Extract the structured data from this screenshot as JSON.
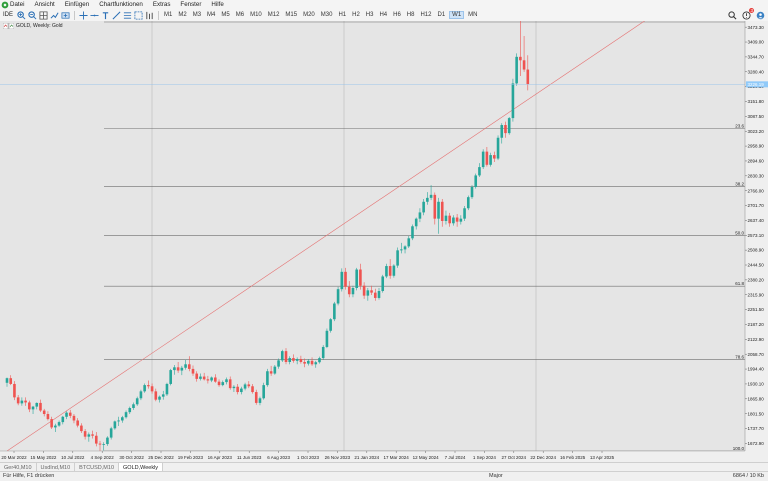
{
  "menu": {
    "items": [
      "Datei",
      "Ansicht",
      "Einfügen",
      "Chartfunktionen",
      "Extras",
      "Fenster",
      "Hilfe"
    ]
  },
  "toolbar": {
    "ide_label": "IDE",
    "timeframes": [
      "M1",
      "M2",
      "M3",
      "M4",
      "M5",
      "M6",
      "M10",
      "M12",
      "M15",
      "M20",
      "M30",
      "H1",
      "H2",
      "H3",
      "H4",
      "H6",
      "H8",
      "H12",
      "D1",
      "W1",
      "MN"
    ],
    "active_timeframe": "W1",
    "notification_count": "3"
  },
  "chart": {
    "title": "GOLD, Weekly:  Gold",
    "current_price_label": "3226.19"
  },
  "chart_data": {
    "type": "candlestick",
    "symbol": "GOLD",
    "timeframe": "Weekly",
    "y_ticks": [
      1672.9,
      1737.7,
      1801.5,
      1865.8,
      1930.1,
      1994.4,
      2058.7,
      2122.9,
      2187.2,
      2251.5,
      2315.9,
      2380.2,
      2444.5,
      2508.9,
      2573.1,
      2637.4,
      2701.7,
      2766.0,
      2830.3,
      2894.6,
      2958.9,
      3023.2,
      3087.5,
      3151.8,
      3216.1,
      3280.4,
      3344.7,
      3409.0,
      3473.3
    ],
    "ylim": [
      1640,
      3500
    ],
    "x_labels": [
      "20 Mar 2022",
      "15 May 2022",
      "10 Jul 2022",
      "4 Sep 2022",
      "30 Oct 2022",
      "25 Dec 2022",
      "19 Feb 2023",
      "16 Apr 2023",
      "11 Jun 2023",
      "6 Aug 2023",
      "1 Oct 2023",
      "26 Nov 2023",
      "21 Jan 2024",
      "17 Mar 2024",
      "12 May 2024",
      "7 Jul 2024",
      "1 Sep 2024",
      "27 Oct 2024",
      "22 Dec 2024",
      "16 Feb 2025",
      "13 Apr 2025"
    ],
    "fibonacci": [
      {
        "label": "23.6",
        "price": 3035
      },
      {
        "label": "38.2",
        "price": 2785
      },
      {
        "label": "50.0",
        "price": 2573
      },
      {
        "label": "61.8",
        "price": 2353
      },
      {
        "label": "78.6",
        "price": 2035
      },
      {
        "label": "100.0",
        "price": 1640
      }
    ],
    "trendline": {
      "from": [
        0,
        1640
      ],
      "to": [
        158,
        3355
      ]
    },
    "candles": [
      [
        1935,
        1958,
        1918,
        1955
      ],
      [
        1955,
        1968,
        1925,
        1930
      ],
      [
        1930,
        1942,
        1860,
        1872
      ],
      [
        1872,
        1882,
        1838,
        1846
      ],
      [
        1846,
        1872,
        1836,
        1858
      ],
      [
        1858,
        1872,
        1835,
        1850
      ],
      [
        1850,
        1858,
        1808,
        1820
      ],
      [
        1820,
        1835,
        1800,
        1832
      ],
      [
        1832,
        1850,
        1820,
        1848
      ],
      [
        1848,
        1862,
        1808,
        1815
      ],
      [
        1815,
        1822,
        1790,
        1800
      ],
      [
        1800,
        1812,
        1772,
        1778
      ],
      [
        1778,
        1788,
        1735,
        1742
      ],
      [
        1742,
        1758,
        1722,
        1750
      ],
      [
        1750,
        1772,
        1745,
        1765
      ],
      [
        1765,
        1792,
        1755,
        1788
      ],
      [
        1788,
        1812,
        1778,
        1806
      ],
      [
        1806,
        1818,
        1782,
        1792
      ],
      [
        1792,
        1800,
        1760,
        1772
      ],
      [
        1772,
        1782,
        1742,
        1750
      ],
      [
        1750,
        1760,
        1718,
        1726
      ],
      [
        1726,
        1735,
        1690,
        1702
      ],
      [
        1702,
        1720,
        1680,
        1712
      ],
      [
        1712,
        1728,
        1694,
        1706
      ],
      [
        1706,
        1722,
        1660,
        1672
      ],
      [
        1672,
        1684,
        1640,
        1668
      ],
      [
        1668,
        1678,
        1642,
        1670
      ],
      [
        1670,
        1704,
        1662,
        1698
      ],
      [
        1698,
        1745,
        1690,
        1738
      ],
      [
        1738,
        1772,
        1732,
        1768
      ],
      [
        1768,
        1788,
        1748,
        1772
      ],
      [
        1772,
        1792,
        1762,
        1786
      ],
      [
        1786,
        1815,
        1780,
        1808
      ],
      [
        1808,
        1832,
        1800,
        1826
      ],
      [
        1826,
        1850,
        1818,
        1842
      ],
      [
        1842,
        1875,
        1835,
        1868
      ],
      [
        1868,
        1905,
        1860,
        1898
      ],
      [
        1898,
        1932,
        1892,
        1925
      ],
      [
        1925,
        1945,
        1910,
        1920
      ],
      [
        1920,
        1932,
        1888,
        1898
      ],
      [
        1898,
        1910,
        1855,
        1862
      ],
      [
        1862,
        1880,
        1850,
        1875
      ],
      [
        1875,
        1900,
        1862,
        1885
      ],
      [
        1885,
        1935,
        1878,
        1930
      ],
      [
        1930,
        1995,
        1924,
        1990
      ],
      [
        1990,
        2012,
        1970,
        2002
      ],
      [
        2002,
        2025,
        1978,
        1988
      ],
      [
        1988,
        2008,
        1968,
        2000
      ],
      [
        2000,
        2035,
        1992,
        2015
      ],
      [
        2015,
        2050,
        1985,
        1995
      ],
      [
        1995,
        2010,
        1965,
        1975
      ],
      [
        1975,
        1985,
        1940,
        1952
      ],
      [
        1952,
        1975,
        1945,
        1962
      ],
      [
        1962,
        1978,
        1945,
        1950
      ],
      [
        1950,
        1965,
        1932,
        1945
      ],
      [
        1945,
        1962,
        1938,
        1958
      ],
      [
        1958,
        1972,
        1935,
        1940
      ],
      [
        1940,
        1950,
        1918,
        1925
      ],
      [
        1925,
        1945,
        1920,
        1938
      ],
      [
        1938,
        1958,
        1928,
        1950
      ],
      [
        1950,
        1962,
        1905,
        1912
      ],
      [
        1912,
        1925,
        1895,
        1918
      ],
      [
        1918,
        1930,
        1885,
        1895
      ],
      [
        1895,
        1918,
        1885,
        1910
      ],
      [
        1910,
        1935,
        1902,
        1928
      ],
      [
        1928,
        1942,
        1912,
        1920
      ],
      [
        1920,
        1930,
        1888,
        1895
      ],
      [
        1895,
        1905,
        1840,
        1848
      ],
      [
        1848,
        1875,
        1838,
        1868
      ],
      [
        1868,
        1935,
        1862,
        1925
      ],
      [
        1925,
        1995,
        1918,
        1985
      ],
      [
        1985,
        2008,
        1965,
        1975
      ],
      [
        1975,
        2012,
        1970,
        2005
      ],
      [
        2005,
        2040,
        1996,
        2032
      ],
      [
        2032,
        2078,
        2025,
        2072
      ],
      [
        2072,
        2085,
        2015,
        2025
      ],
      [
        2025,
        2050,
        2015,
        2042
      ],
      [
        2042,
        2058,
        2022,
        2030
      ],
      [
        2030,
        2045,
        2015,
        2038
      ],
      [
        2038,
        2052,
        2018,
        2025
      ],
      [
        2025,
        2040,
        2002,
        2018
      ],
      [
        2018,
        2038,
        2010,
        2030
      ],
      [
        2030,
        2045,
        2008,
        2015
      ],
      [
        2015,
        2030,
        2000,
        2024
      ],
      [
        2024,
        2048,
        2018,
        2042
      ],
      [
        2042,
        2098,
        2035,
        2090
      ],
      [
        2090,
        2170,
        2085,
        2160
      ],
      [
        2160,
        2215,
        2152,
        2210
      ],
      [
        2210,
        2285,
        2202,
        2278
      ],
      [
        2278,
        2350,
        2270,
        2340
      ],
      [
        2340,
        2430,
        2330,
        2415
      ],
      [
        2415,
        2432,
        2338,
        2350
      ],
      [
        2350,
        2375,
        2305,
        2318
      ],
      [
        2318,
        2355,
        2305,
        2345
      ],
      [
        2345,
        2432,
        2335,
        2425
      ],
      [
        2425,
        2450,
        2338,
        2355
      ],
      [
        2355,
        2370,
        2298,
        2312
      ],
      [
        2312,
        2345,
        2290,
        2335
      ],
      [
        2335,
        2355,
        2315,
        2325
      ],
      [
        2325,
        2342,
        2290,
        2302
      ],
      [
        2302,
        2345,
        2295,
        2332
      ],
      [
        2332,
        2402,
        2325,
        2395
      ],
      [
        2395,
        2450,
        2388,
        2440
      ],
      [
        2440,
        2470,
        2385,
        2398
      ],
      [
        2398,
        2448,
        2390,
        2442
      ],
      [
        2442,
        2520,
        2432,
        2508
      ],
      [
        2508,
        2540,
        2495,
        2512
      ],
      [
        2512,
        2530,
        2495,
        2525
      ],
      [
        2525,
        2570,
        2518,
        2560
      ],
      [
        2560,
        2620,
        2552,
        2612
      ],
      [
        2612,
        2650,
        2598,
        2645
      ],
      [
        2645,
        2690,
        2630,
        2672
      ],
      [
        2672,
        2730,
        2660,
        2718
      ],
      [
        2718,
        2760,
        2705,
        2735
      ],
      [
        2735,
        2790,
        2725,
        2748
      ],
      [
        2748,
        2758,
        2620,
        2645
      ],
      [
        2645,
        2735,
        2580,
        2718
      ],
      [
        2718,
        2730,
        2610,
        2635
      ],
      [
        2635,
        2680,
        2620,
        2658
      ],
      [
        2658,
        2670,
        2610,
        2625
      ],
      [
        2625,
        2660,
        2615,
        2650
      ],
      [
        2650,
        2665,
        2610,
        2632
      ],
      [
        2632,
        2660,
        2620,
        2645
      ],
      [
        2645,
        2700,
        2635,
        2690
      ],
      [
        2690,
        2745,
        2682,
        2738
      ],
      [
        2738,
        2790,
        2730,
        2782
      ],
      [
        2782,
        2840,
        2775,
        2832
      ],
      [
        2832,
        2885,
        2825,
        2868
      ],
      [
        2868,
        2945,
        2860,
        2935
      ],
      [
        2935,
        2955,
        2870,
        2878
      ],
      [
        2878,
        2930,
        2870,
        2920
      ],
      [
        2920,
        2935,
        2890,
        2905
      ],
      [
        2905,
        3005,
        2898,
        2995
      ],
      [
        2995,
        3058,
        2970,
        3050
      ],
      [
        3050,
        3065,
        2995,
        3015
      ],
      [
        3015,
        3085,
        3008,
        3080
      ],
      [
        3080,
        3250,
        3065,
        3230
      ],
      [
        3230,
        3360,
        3220,
        3345
      ],
      [
        3345,
        3500,
        3262,
        3330
      ],
      [
        3330,
        3435,
        3280,
        3290
      ],
      [
        3290,
        3352,
        3200,
        3226
      ]
    ]
  },
  "tabs": [
    {
      "label": "Ger40,M10",
      "active": false
    },
    {
      "label": "UsdInd,M10",
      "active": false
    },
    {
      "label": "BTCUSD,M10",
      "active": false
    },
    {
      "label": "GOLD,Weekly",
      "active": true
    }
  ],
  "status": {
    "help": "Für Hilfe, F1 drücken",
    "mode": "Major",
    "traffic": "6864 / 10 Kb"
  },
  "colors": {
    "bull": "#26a69a",
    "bear": "#ef5350",
    "chart_bg": "#e5e5e5",
    "trendline": "#e57373",
    "price_tag": "#90caf9"
  }
}
